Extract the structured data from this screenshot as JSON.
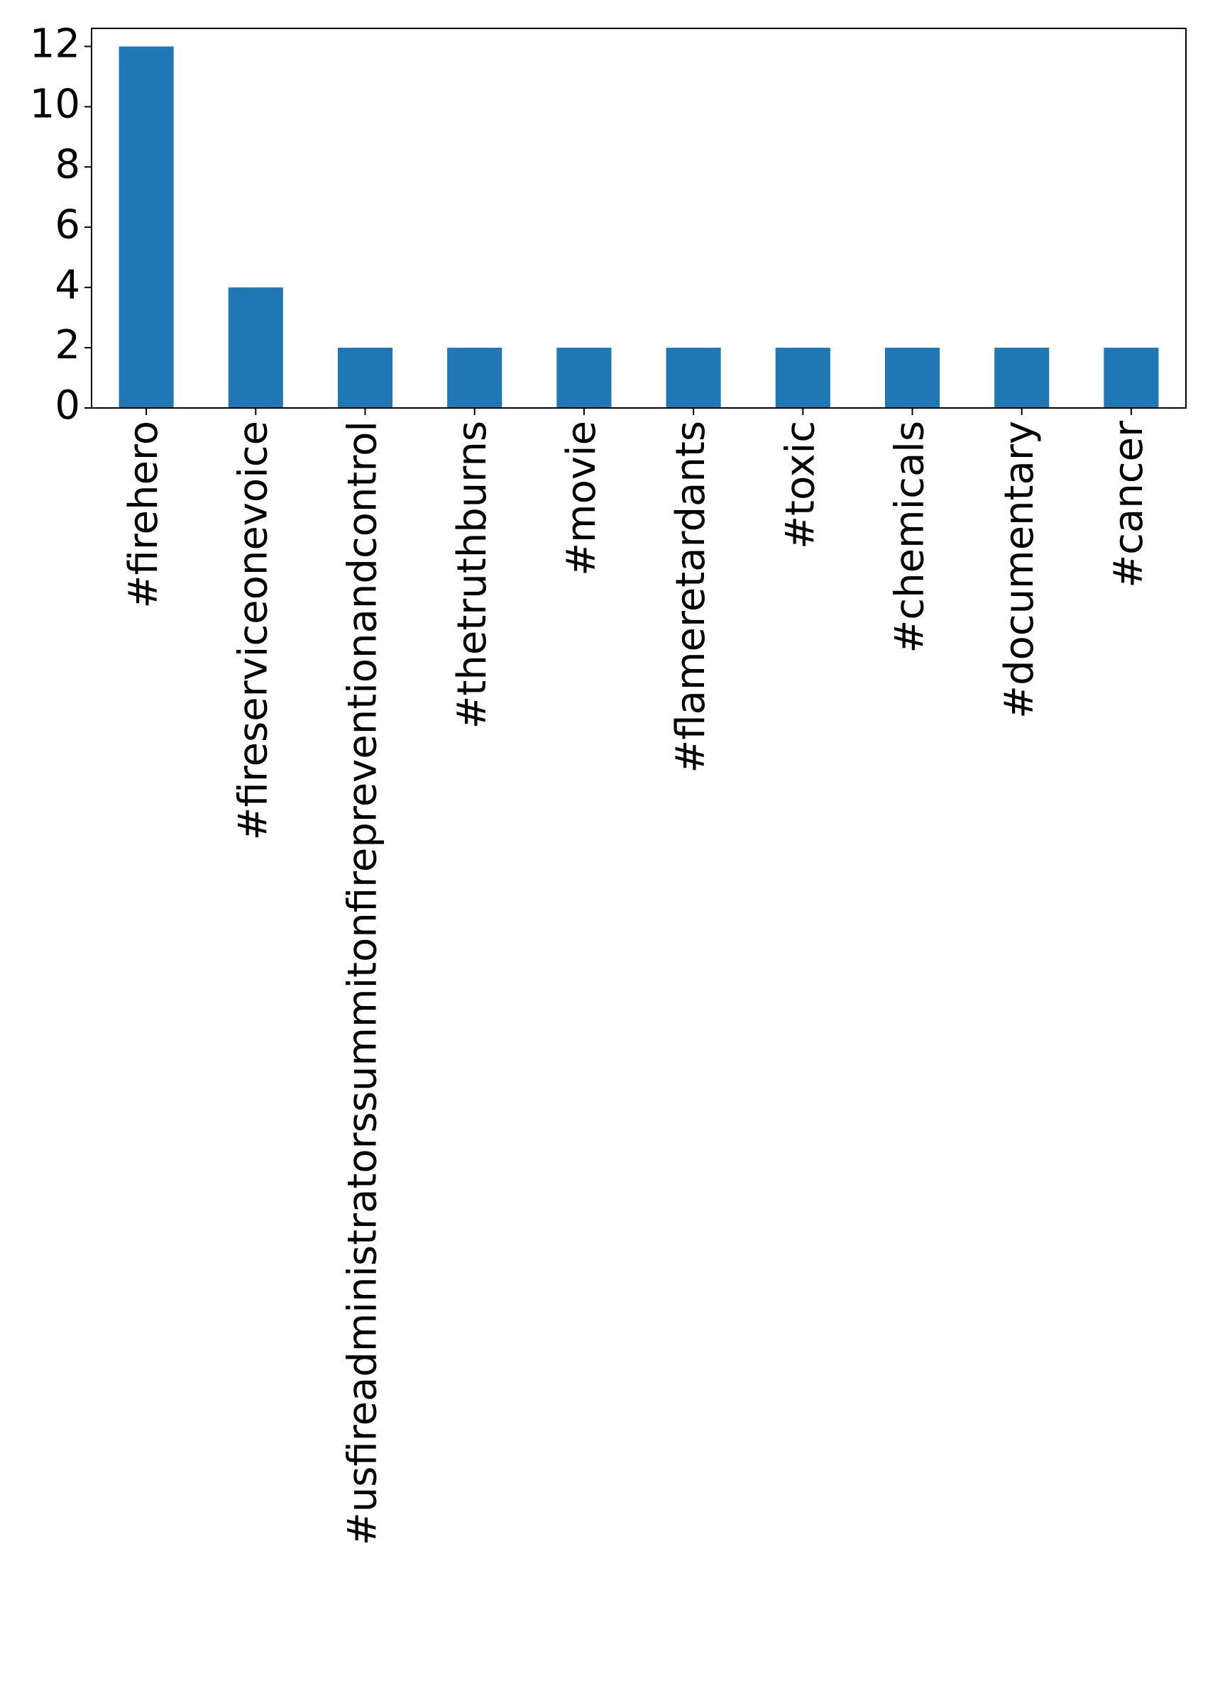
{
  "chart_data": {
    "type": "bar",
    "categories": [
      "#firehero",
      "#fireserviceonevoice",
      "#usfireadministratorssummitonfirepreventionandcontrol",
      "#thetruthburns",
      "#movie",
      "#flameretardants",
      "#toxic",
      "#chemicals",
      "#documentary",
      "#cancer"
    ],
    "values": [
      12,
      4,
      2,
      2,
      2,
      2,
      2,
      2,
      2,
      2
    ],
    "color": "#1f77b4",
    "ylim": [
      0,
      12.6
    ],
    "yticks": [
      0,
      2,
      4,
      6,
      8,
      10,
      12
    ],
    "grid": false
  }
}
